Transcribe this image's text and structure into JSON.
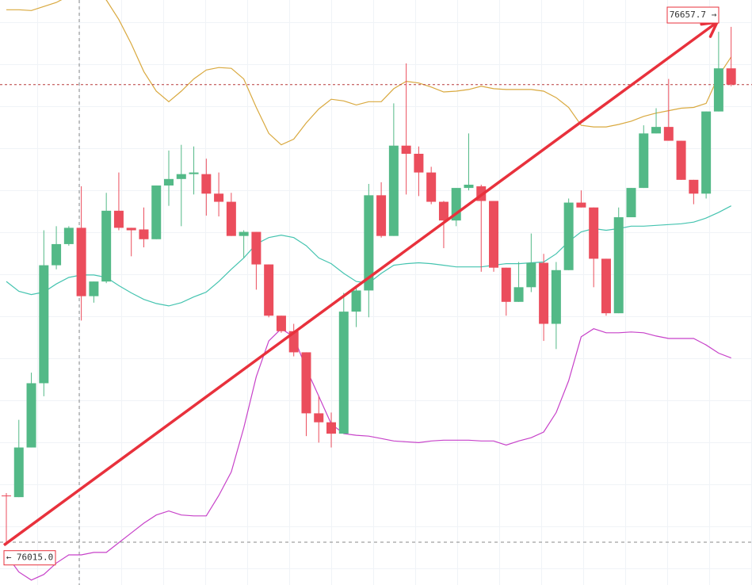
{
  "chart_data": {
    "type": "candlestick",
    "open": [
      76076,
      76074,
      76135,
      76214,
      76359,
      76385,
      76405,
      76321,
      76339,
      76426,
      76405,
      76403,
      76391,
      76457,
      76465,
      76471,
      76471,
      76447,
      76437,
      76395,
      76400,
      76360,
      76297,
      76278,
      76252,
      76177,
      76166,
      76152,
      76302,
      76328,
      76445,
      76395,
      76506,
      76496,
      76473,
      76437,
      76414,
      76454,
      76456,
      76438,
      76356,
      76314,
      76332,
      76362,
      76287,
      76353,
      76436,
      76430,
      76367,
      76300,
      76418,
      76454,
      76521,
      76529,
      76512,
      76464,
      76447,
      76548,
      76601
    ],
    "high": [
      76079,
      76169,
      76227,
      76402,
      76407,
      76407,
      76456,
      76339,
      76448,
      76473,
      76405,
      76430,
      76457,
      76500,
      76507,
      76505,
      76490,
      76473,
      76448,
      76402,
      76400,
      76360,
      76297,
      76287,
      76252,
      76198,
      76178,
      76325,
      76334,
      76459,
      76461,
      76558,
      76607,
      76505,
      76480,
      76438,
      76454,
      76521,
      76458,
      76438,
      76356,
      76363,
      76398,
      76373,
      76363,
      76441,
      76451,
      76430,
      76367,
      76430,
      76454,
      76531,
      76552,
      76588,
      76512,
      76464,
      76548,
      76646,
      76652
    ],
    "low": [
      76015,
      76074,
      76135,
      76198,
      76354,
      76383,
      76291,
      76313,
      76337,
      76402,
      76370,
      76381,
      76391,
      76432,
      76407,
      76446,
      76420,
      76419,
      76395,
      76368,
      76329,
      76295,
      76276,
      76247,
      76149,
      76141,
      76135,
      76152,
      76283,
      76295,
      76393,
      76395,
      76446,
      76444,
      76434,
      76380,
      76407,
      76451,
      76351,
      76351,
      76297,
      76314,
      76326,
      76266,
      76256,
      76353,
      76430,
      76332,
      76297,
      76300,
      76418,
      76454,
      76521,
      76512,
      76464,
      76434,
      76441,
      76548,
      76579
    ],
    "close": [
      76075,
      76135,
      76214,
      76359,
      76385,
      76405,
      76321,
      76339,
      76426,
      76405,
      76402,
      76391,
      76457,
      76465,
      76471,
      76473,
      76447,
      76437,
      76395,
      76400,
      76360,
      76297,
      76278,
      76252,
      76177,
      76166,
      76152,
      76302,
      76328,
      76445,
      76395,
      76506,
      76496,
      76473,
      76437,
      76414,
      76454,
      76458,
      76438,
      76356,
      76314,
      76332,
      76362,
      76287,
      76353,
      76436,
      76430,
      76367,
      76300,
      76418,
      76454,
      76521,
      76529,
      76512,
      76464,
      76447,
      76548,
      76601,
      76581
    ],
    "up_color": "#53b987",
    "down_color": "#eb4d5c",
    "ylim": [
      75966,
      76685
    ],
    "bands": [
      {
        "color": "#d9a93f",
        "values": [
          76673,
          76673,
          76672,
          76677,
          76682,
          76690,
          76697,
          76695,
          76685,
          76661,
          76631,
          76597,
          76573,
          76560,
          76573,
          76588,
          76599,
          76602,
          76601,
          76588,
          76553,
          76521,
          76507,
          76514,
          76534,
          76551,
          76563,
          76561,
          76556,
          76560,
          76560,
          76576,
          76585,
          76583,
          76578,
          76572,
          76573,
          76575,
          76579,
          76576,
          76575,
          76575,
          76575,
          76573,
          76565,
          76553,
          76531,
          76529,
          76529,
          76532,
          76536,
          76542,
          76546,
          76549,
          76552,
          76553,
          76558,
          76592,
          76615
        ]
      },
      {
        "color": "#45c4b0",
        "values": [
          76339,
          76327,
          76323,
          76326,
          76336,
          76344,
          76347,
          76347,
          76344,
          76334,
          76325,
          76317,
          76312,
          76309,
          76313,
          76320,
          76326,
          76339,
          76354,
          76368,
          76385,
          76393,
          76396,
          76393,
          76383,
          76368,
          76361,
          76349,
          76339,
          76337,
          76349,
          76359,
          76361,
          76362,
          76361,
          76359,
          76357,
          76357,
          76357,
          76359,
          76361,
          76361,
          76362,
          76363,
          76373,
          76388,
          76400,
          76404,
          76402,
          76404,
          76407,
          76407,
          76408,
          76409,
          76410,
          76412,
          76417,
          76424,
          76432
        ]
      },
      {
        "color": "#c742c9",
        "values": [
          76003,
          75982,
          75972,
          75979,
          75993,
          76003,
          76003,
          76006,
          76006,
          76018,
          76030,
          76042,
          76052,
          76057,
          76052,
          76051,
          76051,
          76076,
          76105,
          76159,
          76222,
          76266,
          76281,
          76271,
          76232,
          76198,
          76164,
          76152,
          76150,
          76149,
          76146,
          76143,
          76142,
          76141,
          76143,
          76144,
          76144,
          76144,
          76143,
          76143,
          76138,
          76143,
          76147,
          76154,
          76178,
          76217,
          76271,
          76281,
          76276,
          76276,
          76277,
          76276,
          76272,
          76269,
          76269,
          76269,
          76261,
          76251,
          76245
        ]
      }
    ],
    "last_price_color": "#b83a3a",
    "trend_line": {
      "color": "#e8313c",
      "start": {
        "value": 76015.0,
        "label": "← 76015.0"
      },
      "end": {
        "value": 76657.7,
        "label": "76657.7 →"
      }
    }
  }
}
